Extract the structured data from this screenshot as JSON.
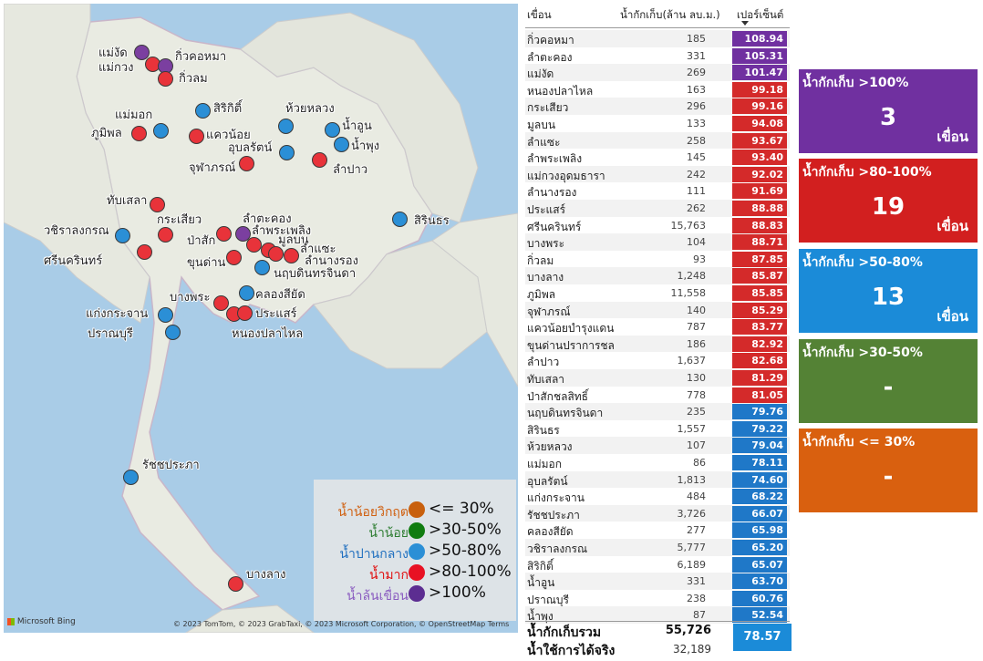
{
  "map": {
    "legend": [
      {
        "name": "น้ำน้อยวิกฤต",
        "range": "<= 30%",
        "color": "#c8600e",
        "name_color": "#d06010"
      },
      {
        "name": "น้ำน้อย",
        "range": ">30-50%",
        "color": "#107c10",
        "name_color": "#2e7d32"
      },
      {
        "name": "น้ำปานกลาง",
        "range": ">50-80%",
        "color": "#2b8fd6",
        "name_color": "#1f6fbf"
      },
      {
        "name": "น้ำมาก",
        "range": ">80-100%",
        "color": "#e81123",
        "name_color": "#e01010"
      },
      {
        "name": "น้ำล้นเขื่อน",
        "range": ">100%",
        "color": "#5c2d91",
        "name_color": "#8a5cc0"
      }
    ],
    "bing_logo": "Microsoft Bing",
    "copyright": "© 2023 TomTom, © 2023 GrabTaxi, © 2023 Microsoft Corporation, © OpenStreetMap  Terms",
    "labels": [
      {
        "name": "แม่งัด",
        "color": "purple"
      },
      {
        "name": "แม่กวง",
        "color": "red"
      },
      {
        "name": "กิ่วคอหมา",
        "color": "purple"
      },
      {
        "name": "กิ่วลม",
        "color": "red"
      },
      {
        "name": "แม่มอก",
        "color": "blue"
      },
      {
        "name": "สิริกิติ์",
        "color": "blue"
      },
      {
        "name": "ห้วยหลวง",
        "color": "blue"
      },
      {
        "name": "น้ำอูน",
        "color": "blue"
      },
      {
        "name": "น้ำพุง",
        "color": "blue"
      },
      {
        "name": "ภูมิพล",
        "color": "red"
      },
      {
        "name": "แควน้อย",
        "color": "red"
      },
      {
        "name": "อุบลรัตน์",
        "color": "blue"
      },
      {
        "name": "จุฬาภรณ์",
        "color": "red"
      },
      {
        "name": "ลำปาว",
        "color": "red"
      },
      {
        "name": "ทับเสลา",
        "color": "red"
      },
      {
        "name": "สิรินธร",
        "color": "blue"
      },
      {
        "name": "วชิราลงกรณ",
        "color": "blue"
      },
      {
        "name": "กระเสียว",
        "color": "red"
      },
      {
        "name": "ลำตะคอง",
        "color": "purple"
      },
      {
        "name": "ลำพระเพลิง",
        "color": "red"
      },
      {
        "name": "ป่าสัก",
        "color": "red"
      },
      {
        "name": "มูลบน",
        "color": "red"
      },
      {
        "name": "ลำแซะ",
        "color": "red"
      },
      {
        "name": "ศรีนครินทร์",
        "color": "red"
      },
      {
        "name": "ขุนด่าน",
        "color": "red"
      },
      {
        "name": "ลำนางรอง",
        "color": "red"
      },
      {
        "name": "นฤบดินทรจินดา",
        "color": "blue"
      },
      {
        "name": "บางพระ",
        "color": "red"
      },
      {
        "name": "คลองสียัด",
        "color": "blue"
      },
      {
        "name": "แก่งกระจาน",
        "color": "blue"
      },
      {
        "name": "ประแสร์",
        "color": "red"
      },
      {
        "name": "ปราณบุรี",
        "color": "blue"
      },
      {
        "name": "หนองปลาไหล",
        "color": "red"
      },
      {
        "name": "รัชชประภา",
        "color": "blue"
      },
      {
        "name": "บางลาง",
        "color": "red"
      }
    ]
  },
  "table": {
    "columns": [
      "เขื่อน",
      "น้ำกักเก็บ(ล้าน ลบ.ม.)",
      "เปอร์เซ็นต์"
    ],
    "rows": [
      {
        "name": "กิ่วคอหมา",
        "volume": "185",
        "percent": "108.94",
        "color": "#7030a0"
      },
      {
        "name": "ลำตะคอง",
        "volume": "331",
        "percent": "105.31",
        "color": "#7030a0"
      },
      {
        "name": "แม่งัด",
        "volume": "269",
        "percent": "101.47",
        "color": "#7030a0"
      },
      {
        "name": "หนองปลาไหล",
        "volume": "163",
        "percent": "99.18",
        "color": "#d42a2a"
      },
      {
        "name": "กระเสียว",
        "volume": "296",
        "percent": "99.16",
        "color": "#d42a2a"
      },
      {
        "name": "มูลบน",
        "volume": "133",
        "percent": "94.08",
        "color": "#d42a2a"
      },
      {
        "name": "ลำแซะ",
        "volume": "258",
        "percent": "93.67",
        "color": "#d42a2a"
      },
      {
        "name": "ลำพระเพลิง",
        "volume": "145",
        "percent": "93.40",
        "color": "#d42a2a"
      },
      {
        "name": "แม่กวงอุดมธารา",
        "volume": "242",
        "percent": "92.02",
        "color": "#d42a2a"
      },
      {
        "name": "ลำนางรอง",
        "volume": "111",
        "percent": "91.69",
        "color": "#d42a2a"
      },
      {
        "name": "ประแสร์",
        "volume": "262",
        "percent": "88.88",
        "color": "#d42a2a"
      },
      {
        "name": "ศรีนครินทร์",
        "volume": "15,763",
        "percent": "88.83",
        "color": "#d42a2a"
      },
      {
        "name": "บางพระ",
        "volume": "104",
        "percent": "88.71",
        "color": "#d42a2a"
      },
      {
        "name": "กิ่วลม",
        "volume": "93",
        "percent": "87.85",
        "color": "#d42a2a"
      },
      {
        "name": "บางลาง",
        "volume": "1,248",
        "percent": "85.87",
        "color": "#d42a2a"
      },
      {
        "name": "ภูมิพล",
        "volume": "11,558",
        "percent": "85.85",
        "color": "#d42a2a"
      },
      {
        "name": "จุฬาภรณ์",
        "volume": "140",
        "percent": "85.29",
        "color": "#d42a2a"
      },
      {
        "name": "แควน้อยบำรุงแดน",
        "volume": "787",
        "percent": "83.77",
        "color": "#d42a2a"
      },
      {
        "name": "ขุนด่านปราการชล",
        "volume": "186",
        "percent": "82.92",
        "color": "#d42a2a"
      },
      {
        "name": "ลำปาว",
        "volume": "1,637",
        "percent": "82.68",
        "color": "#d42a2a"
      },
      {
        "name": "ทับเสลา",
        "volume": "130",
        "percent": "81.29",
        "color": "#d42a2a"
      },
      {
        "name": "ป่าสักชลสิทธิ์",
        "volume": "778",
        "percent": "81.05",
        "color": "#d42a2a"
      },
      {
        "name": "นฤบดินทรจินดา",
        "volume": "235",
        "percent": "79.76",
        "color": "#1f78c8"
      },
      {
        "name": "สิรินธร",
        "volume": "1,557",
        "percent": "79.22",
        "color": "#1f78c8"
      },
      {
        "name": "ห้วยหลวง",
        "volume": "107",
        "percent": "79.04",
        "color": "#1f78c8"
      },
      {
        "name": "แม่มอก",
        "volume": "86",
        "percent": "78.11",
        "color": "#1f78c8"
      },
      {
        "name": "อุบลรัตน์",
        "volume": "1,813",
        "percent": "74.60",
        "color": "#1f78c8"
      },
      {
        "name": "แก่งกระจาน",
        "volume": "484",
        "percent": "68.22",
        "color": "#1f78c8"
      },
      {
        "name": "รัชชประภา",
        "volume": "3,726",
        "percent": "66.07",
        "color": "#1f78c8"
      },
      {
        "name": "คลองสียัด",
        "volume": "277",
        "percent": "65.98",
        "color": "#1f78c8"
      },
      {
        "name": "วชิราลงกรณ",
        "volume": "5,777",
        "percent": "65.20",
        "color": "#1f78c8"
      },
      {
        "name": "สิริกิติ์",
        "volume": "6,189",
        "percent": "65.07",
        "color": "#1f78c8"
      },
      {
        "name": "น้ำอูน",
        "volume": "331",
        "percent": "63.70",
        "color": "#1f78c8"
      },
      {
        "name": "ปราณบุรี",
        "volume": "238",
        "percent": "60.76",
        "color": "#1f78c8"
      },
      {
        "name": "น้ำพุง",
        "volume": "87",
        "percent": "52.54",
        "color": "#1f78c8"
      }
    ],
    "total_label": "น้ำกักเก็บรวม",
    "total_volume": "55,726",
    "total_percent": "78.57",
    "usable_label": "น้ำใช้การได้จริง",
    "usable_volume": "32,189"
  },
  "cards": [
    {
      "title": "น้ำกักเก็บ >100%",
      "count": "3",
      "unit": "เขื่อน",
      "color": "#7030a0"
    },
    {
      "title": "น้ำกักเก็บ >80-100%",
      "count": "19",
      "unit": "เขื่อน",
      "color": "#d21f1f"
    },
    {
      "title": "น้ำกักเก็บ >50-80%",
      "count": "13",
      "unit": "เขื่อน",
      "color": "#1b8bd8"
    },
    {
      "title": "น้ำกักเก็บ >30-50%",
      "count": "-",
      "unit": "",
      "color": "#548235"
    },
    {
      "title": "น้ำกักเก็บ <= 30%",
      "count": "-",
      "unit": "",
      "color": "#d9600f"
    }
  ]
}
